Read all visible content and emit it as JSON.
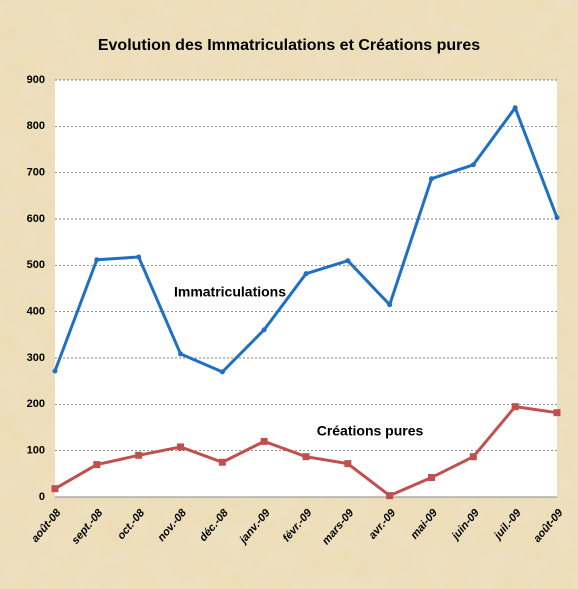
{
  "chart_data": {
    "type": "line",
    "title": "Evolution des Immatriculations et Créations pures",
    "categories": [
      "août-08",
      "sept.-08",
      "oct.-08",
      "nov.-08",
      "déc.-08",
      "janv.-09",
      "févr.-09",
      "mars-09",
      "avr.-09",
      "mai-09",
      "juin-09",
      "juil.-09",
      "août-09"
    ],
    "series": [
      {
        "name": "Immatriculations",
        "color": "#1f6fc5",
        "values": [
          272,
          512,
          518,
          309,
          270,
          361,
          482,
          510,
          415,
          687,
          717,
          840,
          603
        ]
      },
      {
        "name": "Créations pures",
        "color": "#c0504d",
        "values": [
          18,
          70,
          90,
          108,
          75,
          120,
          87,
          72,
          3,
          42,
          87,
          195,
          182
        ]
      }
    ],
    "ylim": [
      0,
      900
    ],
    "yticks": [
      0,
      100,
      200,
      300,
      400,
      500,
      600,
      700,
      800,
      900
    ],
    "grid": true
  }
}
